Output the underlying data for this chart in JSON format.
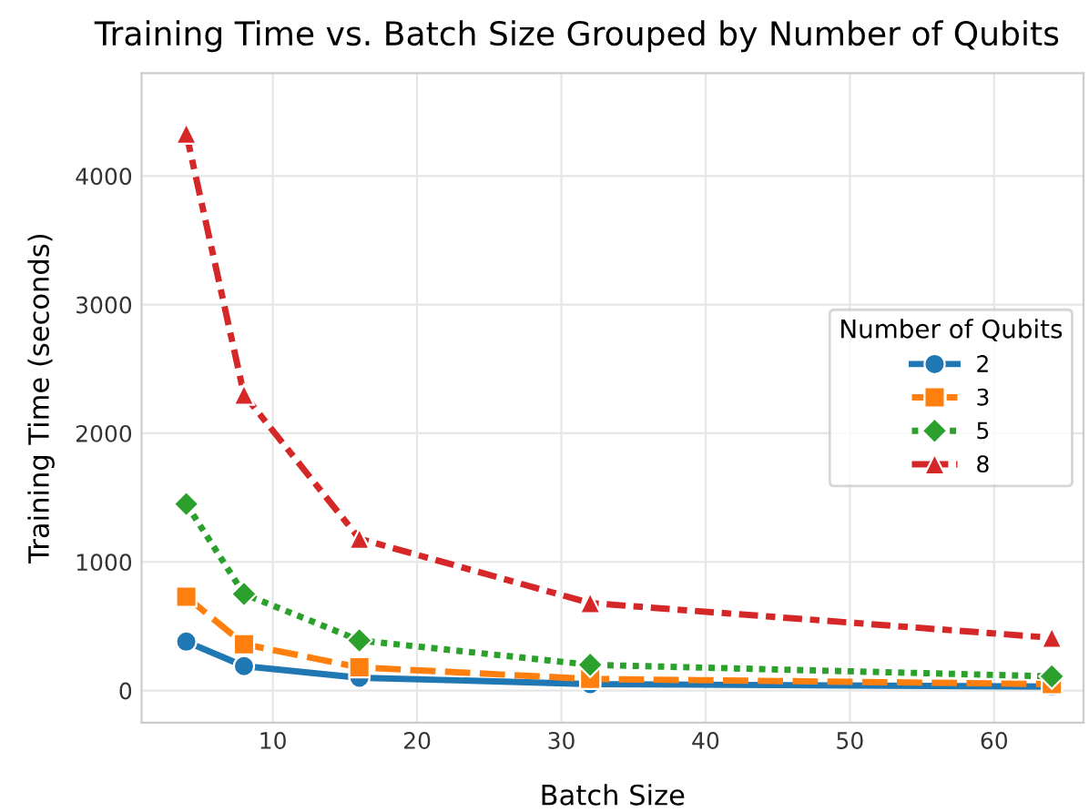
{
  "chart_data": {
    "type": "line",
    "title": "Training Time vs. Batch Size Grouped by Number of Qubits",
    "xlabel": "Batch Size",
    "ylabel": "Training Time (seconds)",
    "legend_title": "Number of Qubits",
    "x": [
      4,
      8,
      16,
      32,
      64
    ],
    "series": [
      {
        "name": "2",
        "color": "#1f77b4",
        "marker": "circle",
        "line_style": "solid",
        "values": [
          380,
          190,
          100,
          50,
          30
        ]
      },
      {
        "name": "3",
        "color": "#ff7f0e",
        "marker": "square",
        "line_style": "dashed",
        "values": [
          730,
          360,
          180,
          90,
          50
        ]
      },
      {
        "name": "5",
        "color": "#2ca02c",
        "marker": "diamond",
        "line_style": "dotted",
        "values": [
          1450,
          750,
          390,
          200,
          110
        ]
      },
      {
        "name": "8",
        "color": "#d62728",
        "marker": "triangle",
        "line_style": "dashdot",
        "values": [
          4330,
          2300,
          1180,
          680,
          410
        ]
      }
    ],
    "xlim": [
      0.9,
      66.2
    ],
    "ylim": [
      -250,
      4800
    ],
    "xticks": [
      10,
      20,
      30,
      40,
      50,
      60
    ],
    "yticks": [
      0,
      1000,
      2000,
      3000,
      4000
    ],
    "grid": true,
    "legend": "right"
  }
}
